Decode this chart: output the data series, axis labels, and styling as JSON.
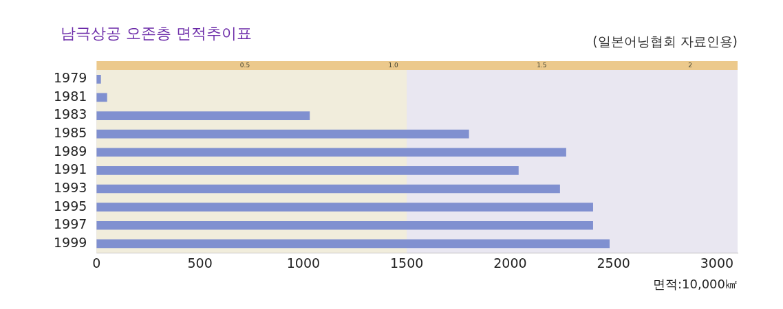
{
  "chart_data": {
    "type": "bar",
    "orientation": "horizontal",
    "title": "남극상공 오존층 면적추이표",
    "annotations": [
      "(일본어닝협회 자료인용)"
    ],
    "xlabel": "면적:10,000㎢",
    "categories": [
      "1979",
      "1981",
      "1983",
      "1985",
      "1989",
      "1991",
      "1993",
      "1995",
      "1997",
      "1999"
    ],
    "values": [
      20,
      50,
      1030,
      1800,
      2270,
      2040,
      2240,
      2400,
      2400,
      2480
    ],
    "color": "#8090d0",
    "xlim": [
      0,
      3100
    ],
    "xticks": [
      0,
      500,
      1000,
      1500,
      2000,
      2500,
      3000
    ],
    "x2lim": [
      0,
      2.16
    ],
    "x2ticks": [
      0.5,
      {
        "value": 1,
        "label": "1.0"
      },
      1.5,
      2
    ],
    "bands": [
      {
        "axis": "x",
        "from": 0,
        "to": 1500,
        "color": "#f1eddc"
      }
    ],
    "grid": false,
    "legend": false
  }
}
